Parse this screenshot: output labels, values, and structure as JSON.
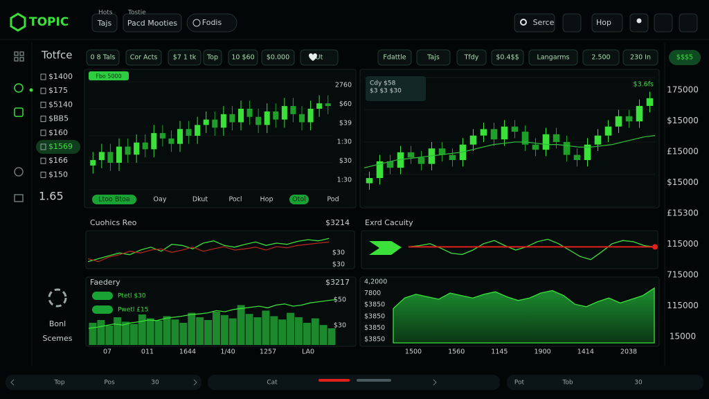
{
  "header": {
    "logo": "TOPIC",
    "tabs": [
      {
        "caption": "Hots",
        "label": "Tajs"
      },
      {
        "caption": "Tostie",
        "label": "Pacd Mooties"
      },
      {
        "label": "Fodis"
      }
    ],
    "search": "Serce",
    "menu": "Hop"
  },
  "sidebar": {
    "title": "Totfce",
    "items": [
      "$1400",
      "$175",
      "$5140",
      "$BB5",
      "$160",
      "$1569",
      "$166",
      "$150"
    ],
    "active": 5,
    "total": "1.65",
    "footer_labels": [
      "Bonl",
      "Scemes"
    ]
  },
  "toolbar_left": [
    "0 8 Tals",
    "Cor Acts",
    "$7 1 tk",
    "Top",
    "10 $60",
    "$0.000",
    "Ut"
  ],
  "toolbar_right": [
    "Fdattle",
    "Tajs",
    "Tfdy",
    "$0.4$$",
    "Langarms",
    "2.500",
    "230 In"
  ],
  "toolbar_badge": "$$$5",
  "chart_data": [
    {
      "type": "candlestick",
      "badge": "Fbo 5000",
      "ylim": [
        10,
        90
      ],
      "open": [
        28,
        32,
        38,
        30,
        42,
        36,
        45,
        40,
        52,
        48,
        44,
        55,
        50,
        58,
        62,
        56,
        66,
        60,
        70,
        64,
        58,
        68,
        62,
        72,
        66,
        60,
        70,
        74
      ],
      "close": [
        32,
        38,
        30,
        42,
        36,
        45,
        40,
        52,
        48,
        44,
        55,
        50,
        58,
        62,
        56,
        66,
        60,
        70,
        64,
        58,
        68,
        62,
        72,
        66,
        60,
        70,
        74,
        72
      ],
      "high": [
        38,
        44,
        44,
        48,
        48,
        51,
        51,
        58,
        58,
        54,
        61,
        61,
        64,
        68,
        68,
        72,
        72,
        76,
        76,
        70,
        74,
        74,
        78,
        78,
        72,
        76,
        80,
        80
      ],
      "low": [
        22,
        26,
        24,
        24,
        30,
        30,
        34,
        34,
        42,
        38,
        38,
        44,
        44,
        52,
        50,
        50,
        54,
        54,
        58,
        52,
        52,
        56,
        56,
        60,
        54,
        54,
        64,
        66
      ],
      "axis_labels": [
        "2760",
        "$60",
        "$39",
        "1:30",
        "$30",
        "1:30"
      ],
      "tabs": [
        "Ltoo Btoa",
        "Oay",
        "Dkut",
        "Pocl",
        "Hop",
        "Otol",
        "Pod"
      ],
      "active_tabs": [
        0,
        5
      ]
    },
    {
      "type": "candlestick",
      "tooltip": [
        "Cdy $58",
        "$3 $3 $30"
      ],
      "badge": "$3.6fs",
      "ylim": [
        0,
        100
      ],
      "open": [
        18,
        22,
        35,
        30,
        42,
        38,
        33,
        45,
        40,
        36,
        48,
        55,
        60,
        52,
        62,
        58,
        48,
        44,
        56,
        50,
        40,
        36,
        48,
        55,
        62,
        70,
        66,
        78
      ],
      "close": [
        22,
        35,
        30,
        42,
        38,
        33,
        45,
        40,
        36,
        48,
        55,
        60,
        52,
        62,
        58,
        48,
        44,
        56,
        50,
        40,
        36,
        48,
        55,
        62,
        70,
        66,
        78,
        84
      ],
      "high": [
        27,
        40,
        40,
        47,
        47,
        43,
        50,
        50,
        45,
        53,
        60,
        65,
        65,
        67,
        67,
        63,
        53,
        61,
        61,
        55,
        45,
        53,
        60,
        67,
        75,
        75,
        83,
        89
      ],
      "low": [
        13,
        17,
        25,
        25,
        33,
        28,
        28,
        35,
        31,
        31,
        43,
        50,
        47,
        47,
        53,
        43,
        39,
        39,
        45,
        35,
        31,
        31,
        43,
        50,
        57,
        61,
        61,
        73
      ],
      "ma": [
        30,
        32,
        34,
        36,
        37,
        38,
        39,
        40,
        41,
        42,
        44,
        46,
        48,
        49,
        50,
        50,
        49,
        48,
        48,
        47,
        46,
        46,
        47,
        48,
        50,
        52,
        54,
        55
      ],
      "axis_labels": [
        "175000",
        "$15000",
        "£15000",
        "$15000",
        "£15300",
        "115000",
        "715000",
        "115000",
        "15000"
      ]
    },
    {
      "type": "line",
      "title": "Cuohics Reo",
      "value_label": "$3214",
      "axis_labels": [
        "$30",
        "$30"
      ],
      "ylim": [
        20,
        80
      ],
      "series": [
        {
          "color": "#3be03b",
          "values": [
            30,
            35,
            40,
            45,
            42,
            50,
            55,
            48,
            60,
            58,
            52,
            62,
            66,
            58,
            55,
            60,
            64,
            58,
            62,
            60,
            65,
            68,
            66,
            70
          ]
        },
        {
          "color": "#b3261e",
          "values": [
            35,
            30,
            38,
            42,
            48,
            45,
            50,
            52,
            46,
            50,
            55,
            48,
            52,
            56,
            50,
            52,
            55,
            50,
            56,
            54,
            58,
            60,
            62,
            64
          ]
        }
      ]
    },
    {
      "type": "line",
      "title": "Exrd Cacuity",
      "ylim": [
        20,
        70
      ],
      "series": [
        {
          "color": "#3be03b",
          "values": [
            50,
            52,
            55,
            48,
            40,
            38,
            45,
            55,
            60,
            52,
            45,
            50,
            58,
            62,
            55,
            45,
            35,
            30,
            42,
            55,
            60,
            58,
            52,
            50
          ]
        },
        {
          "color": "#e0201a",
          "values": [
            50,
            50
          ]
        }
      ]
    },
    {
      "type": "bar",
      "title": "Faedery",
      "value_label": "$3217",
      "legend": [
        "Ptetl $30",
        "Pwetl £15"
      ],
      "axis_labels": [
        "$50",
        "$30"
      ],
      "x_labels": [
        "07",
        "011",
        "1644",
        "1/40",
        "1257",
        "LA0"
      ],
      "ylim": [
        0,
        100
      ],
      "values": [
        40,
        45,
        35,
        50,
        42,
        38,
        55,
        48,
        44,
        52,
        46,
        40,
        58,
        50,
        45,
        60,
        54,
        48,
        72,
        56,
        50,
        62,
        52,
        46,
        58,
        50,
        40,
        48,
        36,
        30
      ],
      "line": [
        30,
        32,
        35,
        38,
        36,
        40,
        42,
        45,
        44,
        48,
        50,
        52,
        55,
        56,
        58,
        62,
        60,
        64,
        66,
        68,
        70,
        67,
        72,
        74,
        70,
        72,
        76,
        78,
        80,
        82
      ]
    },
    {
      "type": "area",
      "axis_labels": [
        "4,2000",
        "7800",
        "$3850",
        "$3850",
        "$3850",
        "$3850"
      ],
      "x_labels": [
        "1500",
        "1560",
        "1145",
        "1900",
        "1414",
        "2038"
      ],
      "ylim": [
        0,
        100
      ],
      "values": [
        55,
        72,
        78,
        74,
        70,
        80,
        76,
        72,
        78,
        82,
        74,
        68,
        72,
        80,
        84,
        76,
        62,
        58,
        66,
        72,
        64,
        70,
        76,
        88
      ]
    }
  ],
  "footer": {
    "left": [
      "Top",
      "Pos",
      "30"
    ],
    "center": "Cat",
    "right": [
      "Pot",
      "Tob",
      "30"
    ]
  }
}
